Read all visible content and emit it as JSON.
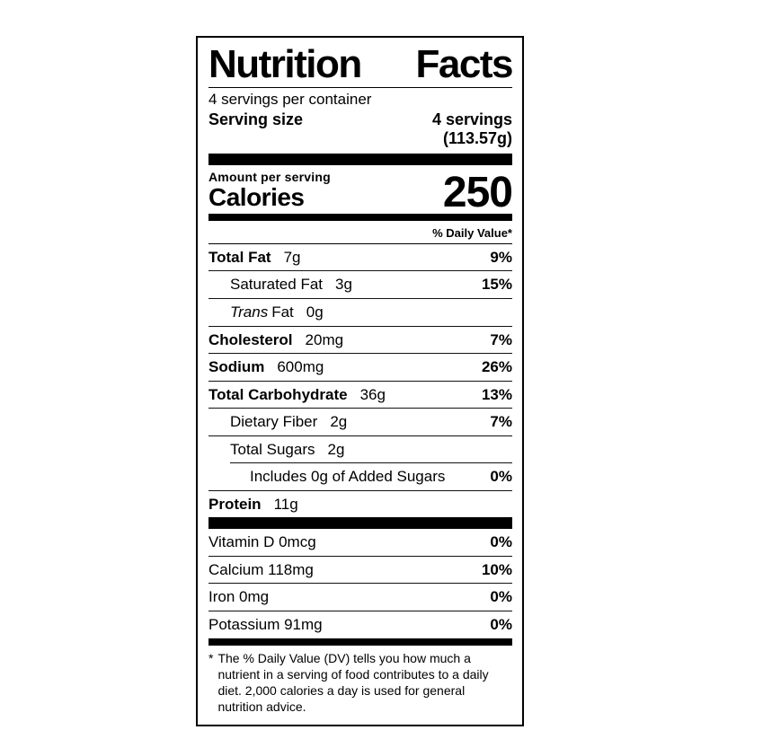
{
  "theme": {
    "text_color": "#000000",
    "background_color": "#ffffff",
    "rule_color": "#111111"
  },
  "label": {
    "title": "Nutrition Facts",
    "title_words": [
      "Nutrition",
      "Facts"
    ],
    "servings_per_container": "4 servings per container",
    "serving_size_label": "Serving size",
    "serving_size_value": "4 servings",
    "serving_size_weight": "(113.57g)",
    "amount_per_serving": "Amount per serving",
    "calories_label": "Calories",
    "calories_value": "250",
    "daily_value_header": "% Daily Value*",
    "nutrients": [
      {
        "name": "Total Fat",
        "amount": "7g",
        "dv": "9%"
      },
      {
        "name": "Saturated Fat",
        "amount": "3g",
        "dv": "15%"
      },
      {
        "name": "Trans Fat",
        "name_italic": "Trans",
        "name_rest": "Fat",
        "amount": "0g",
        "dv": ""
      },
      {
        "name": "Cholesterol",
        "amount": "20mg",
        "dv": "7%"
      },
      {
        "name": "Sodium",
        "amount": "600mg",
        "dv": "26%"
      },
      {
        "name": "Total Carbohydrate",
        "amount": "36g",
        "dv": "13%"
      },
      {
        "name": "Dietary Fiber",
        "amount": "2g",
        "dv": "7%"
      },
      {
        "name": "Total Sugars",
        "amount": "2g",
        "dv": ""
      },
      {
        "name": "Includes 0g of Added Sugars",
        "amount": "",
        "dv": "0%"
      },
      {
        "name": "Protein",
        "amount": "11g",
        "dv": ""
      }
    ],
    "micronutrients": [
      {
        "name": "Vitamin D 0mcg",
        "dv": "0%"
      },
      {
        "name": "Calcium 118mg",
        "dv": "10%"
      },
      {
        "name": "Iron 0mg",
        "dv": "0%"
      },
      {
        "name": "Potassium 91mg",
        "dv": "0%"
      }
    ],
    "footnote_marker": "*",
    "footnote": "The % Daily Value (DV) tells you how much a nutrient in a serving of food contributes to a daily diet. 2,000 calories a day is used for general nutrition advice."
  }
}
